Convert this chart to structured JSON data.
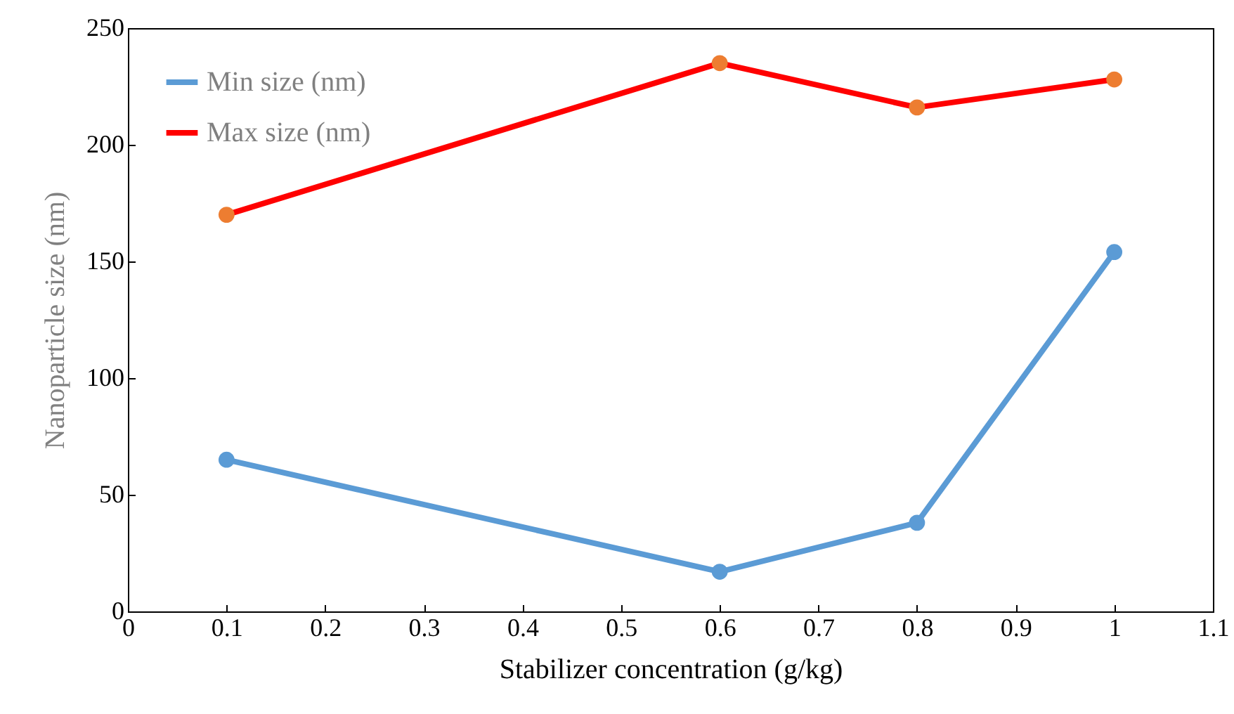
{
  "chart_data": {
    "type": "line",
    "xlabel": "Stabilizer concentration (g/kg)",
    "ylabel": "Nanoparticle  size (nm)",
    "x": [
      0.1,
      0.6,
      0.8,
      1
    ],
    "series": [
      {
        "name": "Min size (nm)",
        "color": "#5b9bd5",
        "values": [
          65,
          17,
          38,
          154
        ]
      },
      {
        "name": "Max size (nm)",
        "color": "#ff0000",
        "colors": [
          "#ed7d31",
          "#ed7d31",
          "#ed7d31",
          "#ed7d31"
        ],
        "values": [
          170,
          235,
          216,
          228
        ]
      }
    ],
    "xlim": [
      0,
      1.1
    ],
    "xticks": [
      0,
      0.1,
      0.2,
      0.3,
      0.4,
      0.5,
      0.6,
      0.7,
      0.8,
      0.9,
      1,
      1.1
    ],
    "ylim": [
      0,
      250
    ],
    "yticks": [
      0,
      50,
      100,
      150,
      200,
      250
    ],
    "grid": false,
    "legend": "top left",
    "marker": "circle",
    "line_style": "solid"
  }
}
